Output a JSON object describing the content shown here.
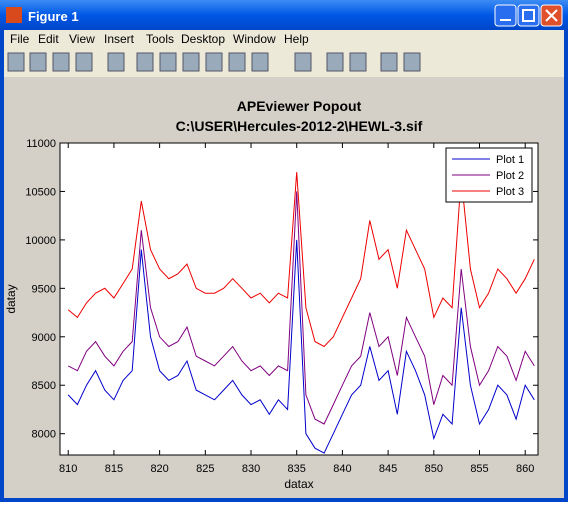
{
  "window": {
    "title": "Figure 1",
    "menus": [
      "File",
      "Edit",
      "View",
      "Insert",
      "Tools",
      "Desktop",
      "Window",
      "Help"
    ]
  },
  "chart_data": {
    "type": "line",
    "title": "APEviewer Popout",
    "subtitle": "C:\\USER\\Hercules-2012-2\\HEWL-3.sif",
    "x_label": "datax",
    "y_label": "datay",
    "x": [
      810,
      811,
      812,
      813,
      814,
      815,
      816,
      817,
      818,
      819,
      820,
      821,
      822,
      823,
      824,
      825,
      826,
      827,
      828,
      829,
      830,
      831,
      832,
      833,
      834,
      835,
      836,
      837,
      838,
      839,
      840,
      841,
      842,
      843,
      844,
      845,
      846,
      847,
      848,
      849,
      850,
      851,
      852,
      853,
      854,
      855,
      856,
      857,
      858,
      859,
      860,
      861
    ],
    "series": [
      {
        "name": "Plot 1",
        "color": "#0000cc",
        "values": [
          8400,
          8300,
          8500,
          8650,
          8450,
          8350,
          8550,
          8650,
          9900,
          9000,
          8650,
          8550,
          8600,
          8750,
          8450,
          8400,
          8350,
          8450,
          8550,
          8400,
          8300,
          8350,
          8200,
          8350,
          8250,
          10000,
          8000,
          7850,
          7800,
          8000,
          8200,
          8400,
          8500,
          8900,
          8550,
          8650,
          8200,
          8850,
          8650,
          8400,
          7950,
          8200,
          8100,
          9300,
          8500,
          8100,
          8250,
          8500,
          8400,
          8150,
          8500,
          8350
        ]
      },
      {
        "name": "Plot 2",
        "color": "#800080",
        "values": [
          8700,
          8650,
          8850,
          8950,
          8800,
          8700,
          8850,
          8950,
          10100,
          9300,
          9000,
          8900,
          8950,
          9100,
          8800,
          8750,
          8700,
          8800,
          8900,
          8750,
          8650,
          8700,
          8600,
          8700,
          8650,
          10500,
          8400,
          8150,
          8100,
          8300,
          8500,
          8700,
          8800,
          9250,
          8900,
          9000,
          8600,
          9200,
          9000,
          8800,
          8300,
          8600,
          8500,
          9700,
          8900,
          8500,
          8650,
          8900,
          8800,
          8550,
          8850,
          8700
        ]
      },
      {
        "name": "Plot 3",
        "color": "#ee0000",
        "values": [
          9280,
          9200,
          9350,
          9450,
          9500,
          9400,
          9550,
          9700,
          10400,
          9900,
          9700,
          9600,
          9650,
          9750,
          9500,
          9450,
          9450,
          9500,
          9600,
          9500,
          9400,
          9450,
          9350,
          9450,
          9400,
          10700,
          9300,
          8950,
          8900,
          9000,
          9200,
          9400,
          9600,
          10200,
          9800,
          9900,
          9500,
          10100,
          9900,
          9700,
          9200,
          9400,
          9300,
          10650,
          9700,
          9300,
          9450,
          9700,
          9600,
          9450,
          9600,
          9800
        ]
      }
    ],
    "xlim": [
      809.1,
      861.4
    ],
    "xticks": [
      810,
      815,
      820,
      825,
      830,
      835,
      840,
      845,
      850,
      855,
      860
    ],
    "ylim": [
      7780,
      11000
    ],
    "yticks": [
      8000,
      8500,
      9000,
      9500,
      10000,
      10500,
      11000
    ],
    "grid": false,
    "legend": "top-right"
  }
}
